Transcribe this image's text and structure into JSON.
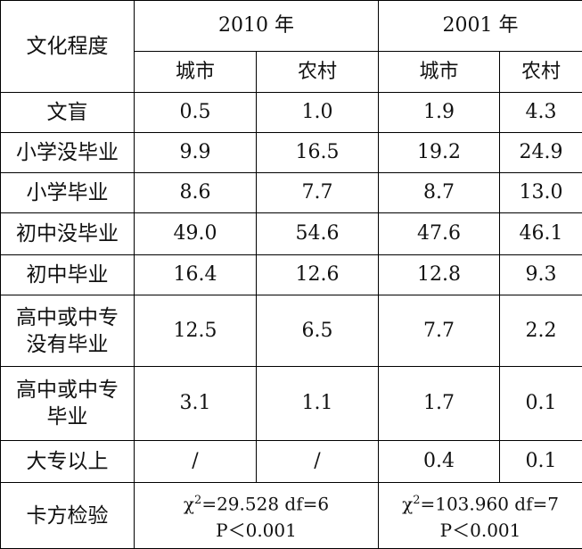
{
  "header": {
    "first": "文化程度",
    "groups": [
      "2010 年",
      "2001 年"
    ],
    "subs": [
      "城市",
      "农村",
      "城市",
      "农村"
    ]
  },
  "rows": [
    {
      "label": [
        "文盲"
      ],
      "values": [
        "0.5",
        "1.0",
        "1.9",
        "4.3"
      ]
    },
    {
      "label": [
        "小学没毕业"
      ],
      "values": [
        "9.9",
        "16.5",
        "19.2",
        "24.9"
      ]
    },
    {
      "label": [
        "小学毕业"
      ],
      "values": [
        "8.6",
        "7.7",
        "8.7",
        "13.0"
      ]
    },
    {
      "label": [
        "初中没毕业"
      ],
      "values": [
        "49.0",
        "54.6",
        "47.6",
        "46.1"
      ]
    },
    {
      "label": [
        "初中毕业"
      ],
      "values": [
        "16.4",
        "12.6",
        "12.8",
        "9.3"
      ]
    },
    {
      "label": [
        "高中或中专",
        "没有毕业"
      ],
      "values": [
        "12.5",
        "6.5",
        "7.7",
        "2.2"
      ]
    },
    {
      "label": [
        "高中或中专",
        "毕业"
      ],
      "values": [
        "3.1",
        "1.1",
        "1.7",
        "0.1"
      ]
    },
    {
      "label": [
        "大专以上"
      ],
      "values": [
        "/",
        "/",
        "0.4",
        "0.1"
      ]
    }
  ],
  "test": {
    "label": "卡方检验",
    "cells": [
      {
        "chi": "χ",
        "sup": "2",
        "stat": "=29.528 df=6",
        "p": "P＜0.001"
      },
      {
        "chi": "χ",
        "sup": "2",
        "stat": "=103.960 df=7",
        "p": "P＜0.001"
      }
    ]
  }
}
